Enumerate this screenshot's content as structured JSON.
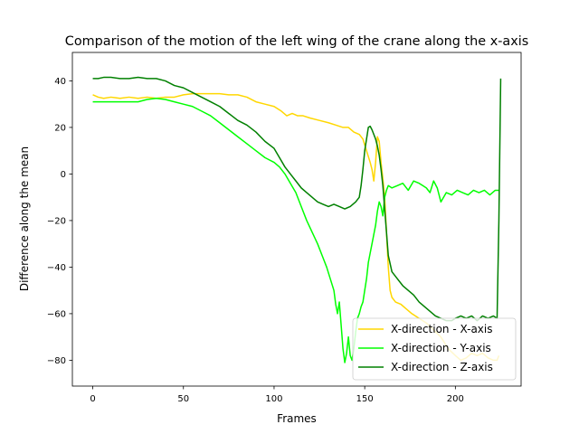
{
  "chart_data": {
    "type": "line",
    "title": "Comparison of the motion of the left wing of the crane along the x-axis",
    "xlabel": "Frames",
    "ylabel": "Difference along the mean",
    "xlim": [
      -11.25,
      236.25
    ],
    "ylim": [
      -91.1,
      52.2
    ],
    "xticks": [
      0,
      50,
      100,
      150,
      200
    ],
    "yticks": [
      -80,
      -60,
      -40,
      -20,
      0,
      20,
      40
    ],
    "grid": false,
    "legend_position": "lower-right",
    "series": [
      {
        "name": "X-direction - X-axis",
        "color": "#FFD700",
        "x": [
          0,
          3,
          6,
          10,
          15,
          20,
          25,
          30,
          35,
          40,
          45,
          50,
          55,
          60,
          65,
          70,
          75,
          80,
          85,
          90,
          95,
          100,
          104,
          107,
          110,
          113,
          116,
          120,
          125,
          130,
          134,
          138,
          141,
          144,
          147,
          149,
          151,
          153,
          154,
          155,
          156,
          157,
          158,
          159,
          160,
          161,
          162,
          163,
          164,
          165,
          167,
          170,
          173,
          176,
          180,
          184,
          188,
          192,
          196,
          200,
          203,
          206,
          209,
          212,
          215,
          218,
          221,
          223,
          224
        ],
        "y": [
          34,
          33,
          32.5,
          33,
          32.5,
          33,
          32.5,
          33,
          32.5,
          33,
          33,
          34,
          34.5,
          34.5,
          34.5,
          34.5,
          34,
          34,
          33,
          31,
          30,
          29,
          27,
          25,
          26,
          25,
          25,
          24,
          23,
          22,
          21,
          20,
          20,
          18,
          17,
          15,
          10,
          5,
          2,
          -3,
          5,
          16,
          14,
          5,
          -2,
          -10,
          -25,
          -40,
          -50,
          -53,
          -55,
          -56,
          -58,
          -60,
          -62,
          -64,
          -67,
          -70,
          -75,
          -78,
          -80,
          -79,
          -77,
          -78,
          -77,
          -79,
          -80,
          -80,
          -78
        ]
      },
      {
        "name": "X-direction - Y-axis",
        "color": "#00FF00",
        "x": [
          0,
          5,
          10,
          15,
          20,
          25,
          30,
          35,
          40,
          45,
          50,
          55,
          60,
          65,
          70,
          75,
          80,
          85,
          90,
          95,
          100,
          103,
          106,
          109,
          112,
          115,
          118,
          121,
          124,
          127,
          129,
          131,
          133,
          134,
          135,
          136,
          137,
          138,
          139,
          140,
          141,
          142,
          143,
          144,
          145,
          146,
          147,
          148,
          149,
          150,
          151,
          152,
          153,
          154,
          155,
          156,
          157,
          158,
          159,
          160,
          161,
          162,
          163,
          165,
          168,
          171,
          174,
          177,
          180,
          182,
          184,
          186,
          188,
          190,
          192,
          195,
          198,
          201,
          204,
          207,
          210,
          213,
          216,
          219,
          222,
          224
        ],
        "y": [
          31,
          31,
          31,
          31,
          31,
          31,
          32,
          32.5,
          32,
          31,
          30,
          29,
          27,
          25,
          22,
          19,
          16,
          13,
          10,
          7,
          5,
          3,
          0,
          -4,
          -8,
          -14,
          -20,
          -25,
          -30,
          -36,
          -40,
          -45,
          -50,
          -56,
          -60,
          -55,
          -65,
          -75,
          -81,
          -77,
          -70,
          -78,
          -80,
          -75,
          -68,
          -62,
          -60,
          -57,
          -55,
          -50,
          -45,
          -38,
          -34,
          -30,
          -26,
          -22,
          -16,
          -12,
          -14,
          -18,
          -10,
          -7,
          -5,
          -6,
          -5,
          -4,
          -7,
          -3,
          -4,
          -5,
          -6,
          -8,
          -3,
          -6,
          -12,
          -8,
          -9,
          -7,
          -8,
          -9,
          -7,
          -8,
          -7,
          -9,
          -7,
          -7
        ]
      },
      {
        "name": "X-direction - Z-axis",
        "color": "#008000",
        "x": [
          0,
          3,
          6,
          10,
          15,
          20,
          25,
          30,
          35,
          40,
          45,
          50,
          55,
          60,
          65,
          70,
          75,
          80,
          85,
          90,
          95,
          100,
          103,
          106,
          109,
          112,
          115,
          118,
          121,
          124,
          127,
          130,
          133,
          136,
          139,
          142,
          145,
          147,
          148,
          149,
          150,
          151,
          152,
          153,
          154,
          155,
          156,
          157,
          158,
          159,
          160,
          161,
          162,
          163,
          165,
          168,
          171,
          174,
          177,
          180,
          183,
          186,
          189,
          192,
          195,
          198,
          200,
          203,
          206,
          209,
          212,
          215,
          218,
          221,
          223,
          224,
          225
        ],
        "y": [
          41,
          41,
          41.5,
          41.5,
          41,
          41,
          41.5,
          41,
          41,
          40,
          38,
          37,
          35,
          33,
          31,
          29,
          26,
          23,
          21,
          18,
          14,
          11,
          7,
          3,
          0,
          -3,
          -6,
          -8,
          -10,
          -12,
          -13,
          -14,
          -13,
          -14,
          -15,
          -14,
          -12,
          -10,
          -5,
          2,
          10,
          15,
          20,
          20.5,
          19,
          17,
          15,
          12,
          8,
          2,
          -5,
          -15,
          -25,
          -35,
          -42,
          -45,
          -48,
          -50,
          -52,
          -55,
          -57,
          -59,
          -61,
          -62,
          -63,
          -63,
          -62,
          -61,
          -62,
          -61,
          -63,
          -61,
          -62,
          -61,
          -62,
          -20,
          41
        ]
      }
    ]
  }
}
